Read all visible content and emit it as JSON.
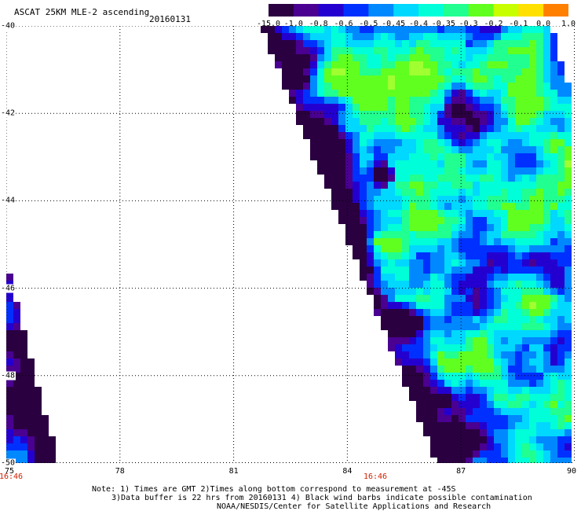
{
  "header": {
    "title": "ASCAT 25KM MLE-2 ascending",
    "date": "20160131"
  },
  "colorbar": {
    "labels": [
      "-15.0",
      "-1.0",
      "-0.8",
      "-0.6",
      "-0.5",
      "-0.45",
      "-0.4",
      "-0.35",
      "-0.3",
      "-0.2",
      "-0.1",
      "0.0",
      "1.0"
    ],
    "colors": [
      "#2a0040",
      "#4a0090",
      "#2400d0",
      "#0030ff",
      "#0088ff",
      "#00d8ff",
      "#00ffd8",
      "#20ff90",
      "#60ff20",
      "#c8ff00",
      "#ffe000",
      "#ff8000",
      "#ff2000"
    ]
  },
  "map": {
    "lat_labels": [
      "-40",
      "-42",
      "-44",
      "-46",
      "-48",
      "-50"
    ],
    "lon_labels": [
      "75",
      "78",
      "81",
      "84",
      "87",
      "90"
    ],
    "time_labels": [
      "16:46",
      "16:46"
    ],
    "lat_range": [
      -40,
      -50
    ],
    "lon_range": [
      75,
      90
    ]
  },
  "footer": {
    "line1": "Note: 1) Times are GMT 2)Times along bottom correspond to measurement at -45S",
    "line2": "3)Data buffer is 22 hrs from 20160131 4) Black wind barbs indicate possible contamination",
    "line3": "NOAA/NESDIS/Center for Satellite Applications and Research"
  }
}
